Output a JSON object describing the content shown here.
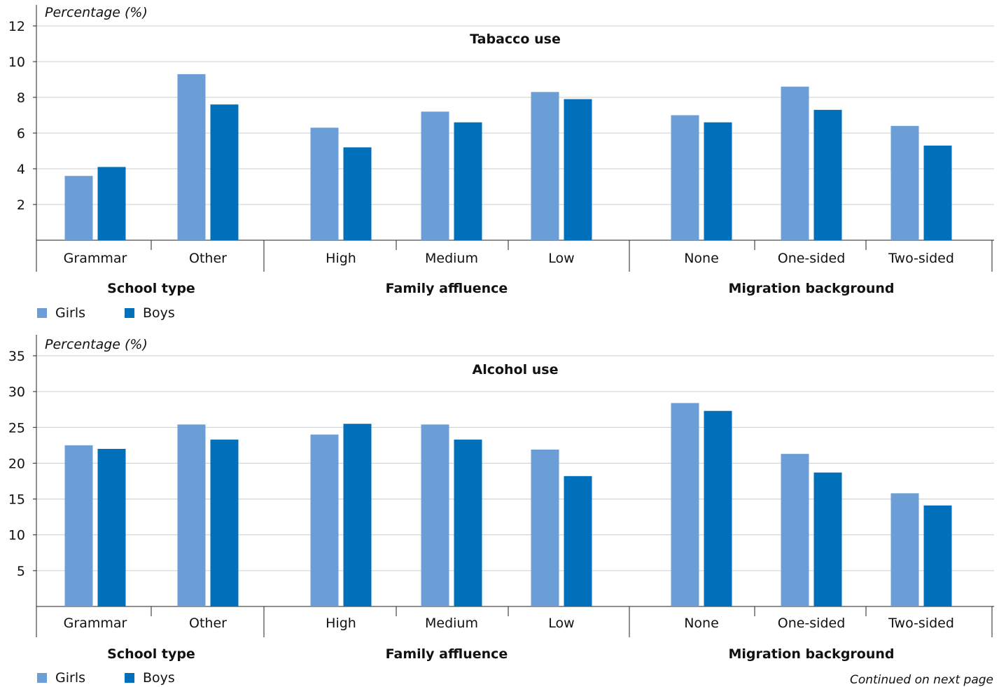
{
  "colors": {
    "girls": "#6b9ed6",
    "boys": "#0070bb",
    "grid": "#cccccc",
    "axis": "#222222"
  },
  "legend": {
    "girls_label": "Girls",
    "boys_label": "Boys"
  },
  "footnote": "Continued on next page",
  "chart_data": [
    {
      "type": "bar",
      "title": "Tabacco use",
      "ylabel": "Percentage (%)",
      "xlabel": "",
      "ylim": [
        0,
        12
      ],
      "yticks": [
        2,
        4,
        6,
        8,
        10,
        12
      ],
      "grid": true,
      "legend_position": "bottom-left",
      "categories": [
        "Grammar",
        "Other",
        "High",
        "Medium",
        "Low",
        "None",
        "One-sided",
        "Two-sided"
      ],
      "groups": [
        {
          "label": "School type",
          "categories": [
            "Grammar",
            "Other"
          ]
        },
        {
          "label": "Family affluence",
          "categories": [
            "High",
            "Medium",
            "Low"
          ]
        },
        {
          "label": "Migration background",
          "categories": [
            "None",
            "One-sided",
            "Two-sided"
          ]
        }
      ],
      "series": [
        {
          "name": "Girls",
          "values": [
            3.6,
            9.3,
            6.3,
            7.2,
            8.3,
            7.0,
            8.6,
            6.4
          ]
        },
        {
          "name": "Boys",
          "values": [
            4.1,
            7.6,
            5.2,
            6.6,
            7.9,
            6.6,
            7.3,
            5.3
          ]
        }
      ]
    },
    {
      "type": "bar",
      "title": "Alcohol use",
      "ylabel": "Percentage (%)",
      "xlabel": "",
      "ylim": [
        0,
        35
      ],
      "yticks": [
        5,
        10,
        15,
        20,
        25,
        30,
        35
      ],
      "grid": true,
      "legend_position": "bottom-left",
      "categories": [
        "Grammar",
        "Other",
        "High",
        "Medium",
        "Low",
        "None",
        "One-sided",
        "Two-sided"
      ],
      "groups": [
        {
          "label": "School type",
          "categories": [
            "Grammar",
            "Other"
          ]
        },
        {
          "label": "Family affluence",
          "categories": [
            "High",
            "Medium",
            "Low"
          ]
        },
        {
          "label": "Migration background",
          "categories": [
            "None",
            "One-sided",
            "Two-sided"
          ]
        }
      ],
      "series": [
        {
          "name": "Girls",
          "values": [
            22.5,
            25.4,
            24.0,
            25.4,
            21.9,
            28.4,
            21.3,
            15.8
          ]
        },
        {
          "name": "Boys",
          "values": [
            22.0,
            23.3,
            25.5,
            23.3,
            18.2,
            27.3,
            18.7,
            14.1
          ]
        }
      ]
    }
  ]
}
